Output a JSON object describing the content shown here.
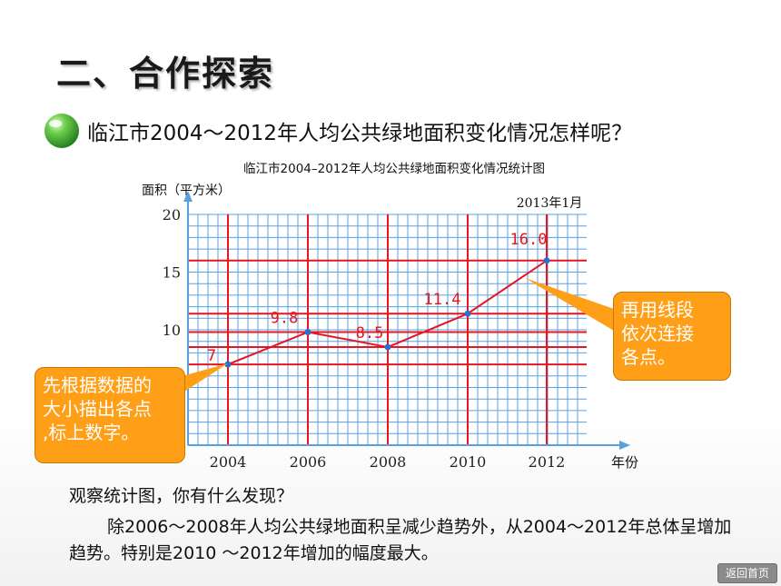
{
  "heading": "二、合作探索",
  "question": "临江市2004～2012年人均公共绿地面积变化情况怎样呢？",
  "chart_data": {
    "type": "line",
    "title": "临江市2004–2012年人均公共绿地面积变化情况统计图",
    "ylabel": "面积（平方米）",
    "xlabel": "年份",
    "corner_note": "2013年1月",
    "ylim": [
      0,
      20
    ],
    "y_ticks": [
      10,
      15,
      20
    ],
    "x": [
      "2004",
      "2006",
      "2008",
      "2010",
      "2012"
    ],
    "values": [
      7,
      9.8,
      8.5,
      11.4,
      16.0
    ],
    "data_labels": [
      "7",
      "9.8",
      "8.5",
      "11.4",
      "16.0"
    ],
    "grid": true
  },
  "callouts": {
    "left": [
      "先根据数据的",
      "大小描出各点",
      ",标上数字。"
    ],
    "right": [
      "再用线段",
      "依次连接",
      "各点。"
    ]
  },
  "observation": {
    "question": "观察统计图，你有什么发现？",
    "answer": "除2006～2008年人均公共绿地面积呈减少趋势外，从2004～2012年总体呈增加趋势。特别是2010 ～2012年增加的幅度最大。"
  },
  "back_button": "返回首页",
  "colors": {
    "accent": "#e8141e",
    "grid": "#5aa0e0",
    "callout": "#ff9f17"
  }
}
